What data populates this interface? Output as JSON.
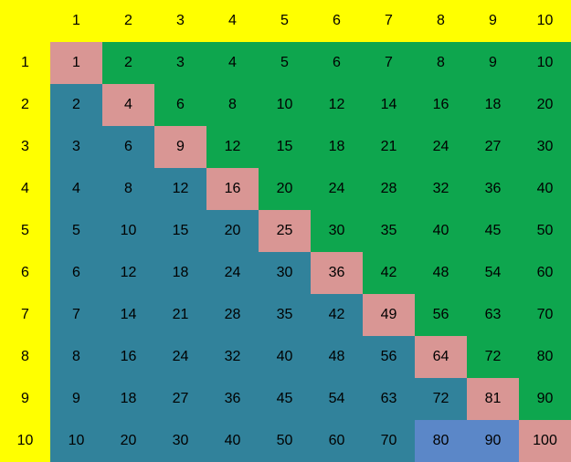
{
  "palette": {
    "header_bg": "#FFFF00",
    "green": "#0EA64E",
    "teal": "#31829B",
    "salmon": "#D99694",
    "blue": "#5B87C8",
    "text": "#000000",
    "selection_border": "#C9619F",
    "selection_edge": "#4A5A66",
    "handle_fill": "#C9B18D",
    "handle_border": "#3A4450",
    "caret_color": "#17333E"
  },
  "table": {
    "column_headers": [
      1,
      2,
      3,
      4,
      5,
      6,
      7,
      8,
      9,
      10
    ],
    "row_headers": [
      1,
      2,
      3,
      4,
      5,
      6,
      7,
      8,
      9,
      10
    ],
    "values": [
      [
        1,
        2,
        3,
        4,
        5,
        6,
        7,
        8,
        9,
        10
      ],
      [
        2,
        4,
        6,
        8,
        10,
        12,
        14,
        16,
        18,
        20
      ],
      [
        3,
        6,
        9,
        12,
        15,
        18,
        21,
        24,
        27,
        30
      ],
      [
        4,
        8,
        12,
        16,
        20,
        24,
        28,
        32,
        36,
        40
      ],
      [
        5,
        10,
        15,
        20,
        25,
        30,
        35,
        40,
        45,
        50
      ],
      [
        6,
        12,
        18,
        24,
        30,
        36,
        42,
        48,
        54,
        60
      ],
      [
        7,
        14,
        21,
        28,
        35,
        42,
        49,
        56,
        63,
        70
      ],
      [
        8,
        16,
        24,
        32,
        40,
        48,
        56,
        64,
        72,
        80
      ],
      [
        9,
        18,
        27,
        36,
        45,
        54,
        63,
        72,
        81,
        90
      ],
      [
        10,
        20,
        30,
        40,
        50,
        60,
        70,
        80,
        90,
        100
      ]
    ],
    "cell_colors": [
      [
        "s",
        "g",
        "g",
        "g",
        "g",
        "g",
        "g",
        "g",
        "g",
        "g"
      ],
      [
        "t",
        "s",
        "g",
        "g",
        "g",
        "g",
        "g",
        "g",
        "g",
        "g"
      ],
      [
        "t",
        "t",
        "s",
        "g",
        "g",
        "g",
        "g",
        "g",
        "g",
        "g"
      ],
      [
        "t",
        "t",
        "t",
        "s",
        "g",
        "g",
        "g",
        "g",
        "g",
        "g"
      ],
      [
        "t",
        "t",
        "t",
        "t",
        "s",
        "g",
        "g",
        "g",
        "g",
        "g"
      ],
      [
        "t",
        "t",
        "t",
        "t",
        "t",
        "s",
        "g",
        "g",
        "g",
        "g"
      ],
      [
        "t",
        "t",
        "t",
        "t",
        "t",
        "t",
        "s",
        "g",
        "g",
        "g"
      ],
      [
        "t",
        "t",
        "t",
        "t",
        "t",
        "t",
        "t",
        "s",
        "g",
        "g"
      ],
      [
        "t",
        "t",
        "t",
        "t",
        "t",
        "t",
        "t",
        "t",
        "s",
        "g"
      ],
      [
        "t",
        "t",
        "t",
        "t",
        "t",
        "t",
        "t",
        "b",
        "b",
        "s"
      ]
    ],
    "color_map": {
      "s": "salmon",
      "g": "green",
      "t": "teal",
      "b": "blue"
    },
    "selected_cell": {
      "row": 9,
      "column": 10,
      "value": 90
    },
    "caret_cell": {
      "row": 8,
      "column": 3
    }
  }
}
